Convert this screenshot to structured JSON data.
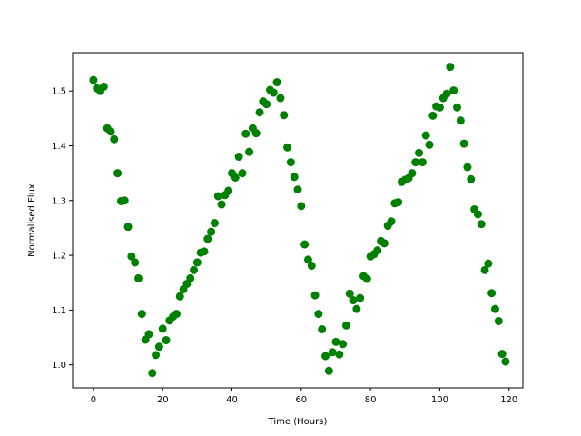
{
  "chart_data": {
    "type": "scatter",
    "xlabel": "Time (Hours)",
    "ylabel": "Normalised Flux",
    "xlim": [
      -6,
      124
    ],
    "ylim": [
      0.958,
      1.57
    ],
    "xticks": [
      0,
      20,
      40,
      60,
      80,
      100,
      120
    ],
    "xtick_labels": [
      "0",
      "20",
      "40",
      "60",
      "80",
      "100",
      "120"
    ],
    "yticks": [
      1.0,
      1.1,
      1.2,
      1.3,
      1.4,
      1.5
    ],
    "ytick_labels": [
      "1.0",
      "1.1",
      "1.2",
      "1.3",
      "1.4",
      "1.5"
    ],
    "grid": false,
    "marker_color": "#008000",
    "x": [
      0,
      1,
      2,
      3,
      4,
      5,
      6,
      7,
      8,
      9,
      10,
      11,
      12,
      13,
      14,
      15,
      16,
      17,
      18,
      19,
      20,
      21,
      22,
      23,
      24,
      25,
      26,
      27,
      28,
      29,
      30,
      31,
      32,
      33,
      34,
      35,
      36,
      37,
      38,
      39,
      40,
      41,
      42,
      43,
      44,
      45,
      46,
      47,
      48,
      49,
      50,
      51,
      52,
      53,
      54,
      55,
      56,
      57,
      58,
      59,
      60,
      61,
      62,
      63,
      64,
      65,
      66,
      67,
      68,
      69,
      70,
      71,
      72,
      73,
      74,
      75,
      76,
      77,
      78,
      79,
      80,
      81,
      82,
      83,
      84,
      85,
      86,
      87,
      88,
      89,
      90,
      91,
      92,
      93,
      94,
      95,
      96,
      97,
      98,
      99,
      100,
      101,
      102,
      103,
      104,
      105,
      106,
      107,
      108,
      109,
      110,
      111,
      112,
      113,
      114,
      115,
      116,
      117,
      118,
      119
    ],
    "y": [
      1.52,
      1.505,
      1.5,
      1.508,
      1.432,
      1.426,
      1.412,
      1.35,
      1.299,
      1.3,
      1.252,
      1.198,
      1.187,
      1.158,
      1.093,
      1.046,
      1.056,
      0.985,
      1.018,
      1.033,
      1.066,
      1.045,
      1.081,
      1.088,
      1.093,
      1.125,
      1.138,
      1.148,
      1.158,
      1.173,
      1.187,
      1.205,
      1.207,
      1.23,
      1.243,
      1.259,
      1.308,
      1.293,
      1.31,
      1.318,
      1.35,
      1.342,
      1.38,
      1.35,
      1.422,
      1.389,
      1.432,
      1.423,
      1.461,
      1.481,
      1.476,
      1.502,
      1.497,
      1.516,
      1.487,
      1.456,
      1.397,
      1.37,
      1.343,
      1.32,
      1.29,
      1.22,
      1.192,
      1.181,
      1.127,
      1.093,
      1.065,
      1.016,
      0.989,
      1.023,
      1.042,
      1.019,
      1.038,
      1.072,
      1.13,
      1.118,
      1.102,
      1.122,
      1.162,
      1.157,
      1.198,
      1.202,
      1.209,
      1.226,
      1.222,
      1.254,
      1.262,
      1.295,
      1.297,
      1.334,
      1.338,
      1.341,
      1.35,
      1.37,
      1.387,
      1.37,
      1.419,
      1.402,
      1.455,
      1.472,
      1.47,
      1.487,
      1.495,
      1.544,
      1.501,
      1.47,
      1.446,
      1.404,
      1.361,
      1.339,
      1.284,
      1.275,
      1.257,
      1.173,
      1.185,
      1.131,
      1.102,
      1.08,
      1.02,
      1.006
    ]
  }
}
